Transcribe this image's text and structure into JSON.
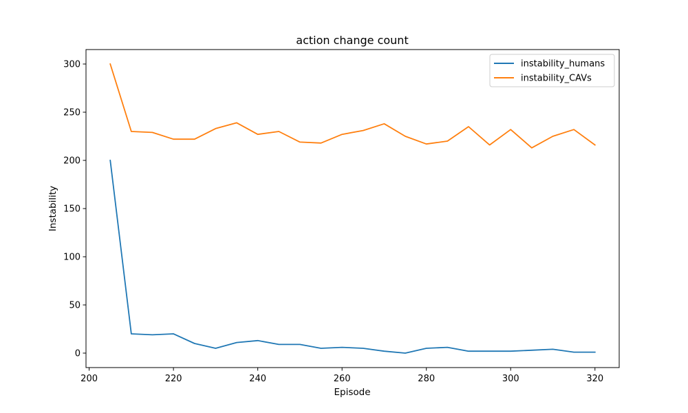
{
  "chart_data": {
    "type": "line",
    "title": "action change count",
    "xlabel": "Episode",
    "ylabel": "Instability",
    "xlim": [
      199.25,
      325.75
    ],
    "ylim": [
      -15,
      315
    ],
    "xticks": [
      200,
      220,
      240,
      260,
      280,
      300,
      320
    ],
    "yticks": [
      0,
      50,
      100,
      150,
      200,
      250,
      300
    ],
    "x": [
      205,
      210,
      215,
      220,
      225,
      230,
      235,
      240,
      245,
      250,
      255,
      260,
      265,
      270,
      275,
      280,
      285,
      290,
      295,
      300,
      305,
      310,
      315,
      320
    ],
    "series": [
      {
        "name": "instability_humans",
        "color": "#1f77b4",
        "values": [
          200,
          20,
          19,
          20,
          10,
          5,
          11,
          13,
          9,
          9,
          5,
          6,
          5,
          2,
          0,
          5,
          6,
          2,
          2,
          2,
          3,
          4,
          1,
          1
        ]
      },
      {
        "name": "instability_CAVs",
        "color": "#ff7f0e",
        "values": [
          300,
          230,
          229,
          222,
          222,
          233,
          239,
          227,
          230,
          219,
          218,
          227,
          231,
          238,
          225,
          217,
          220,
          235,
          216,
          232,
          213,
          225,
          232,
          216
        ]
      }
    ],
    "legend": "top-right",
    "grid": false
  }
}
